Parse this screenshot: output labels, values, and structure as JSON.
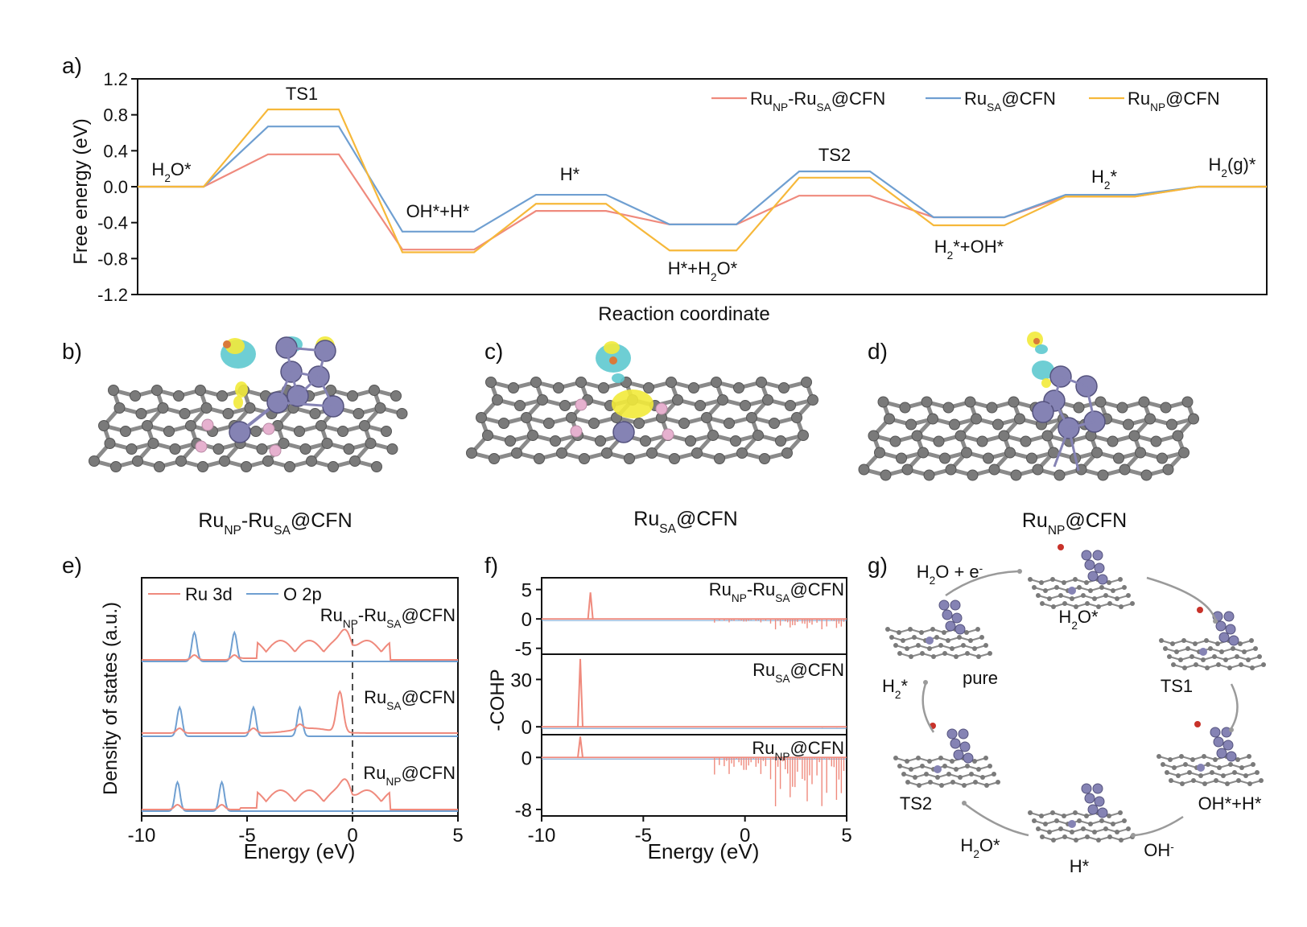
{
  "colors": {
    "ru_np_sa": "#ef8a7d",
    "ru_sa": "#6f9fd1",
    "ru_np": "#f6b83a",
    "carbon": "#8a8a8a",
    "ru_atom": "#8583b4",
    "n_atom": "#e6b1cf",
    "cdd_yellow": "#f2ea3a",
    "cdd_cyan": "#5ec9cf"
  },
  "panels": {
    "a": "a)",
    "b": "b)",
    "c": "c)",
    "d": "d)",
    "e": "e)",
    "f": "f)",
    "g": "g)"
  },
  "chart_data": [
    {
      "id": "a",
      "type": "line",
      "title": "",
      "xlabel": "Reaction coordinate",
      "ylabel": "Free energy (eV)",
      "ylim": [
        -1.2,
        1.2
      ],
      "yticks": [
        "1.2",
        "0.8",
        "0.4",
        "0.0",
        "-0.4",
        "-0.8",
        "-1.2"
      ],
      "states": [
        "H2O*",
        "TS1",
        "OH*+H*",
        "H*",
        "H*+H2O*",
        "TS2",
        "H2*+OH*",
        "H2*",
        "H2(g)*"
      ],
      "state_labels": [
        {
          "pre": "H",
          "sub": "2",
          "post": "O*"
        },
        {
          "pre": "TS1",
          "sub": "",
          "post": ""
        },
        {
          "pre": "OH*+H*",
          "sub": "",
          "post": ""
        },
        {
          "pre": "H*",
          "sub": "",
          "post": ""
        },
        {
          "pre": "H*+H",
          "sub": "2",
          "post": "O*"
        },
        {
          "pre": "TS2",
          "sub": "",
          "post": ""
        },
        {
          "pre": "H",
          "sub": "2",
          "post": "*+OH*"
        },
        {
          "pre": "H",
          "sub": "2",
          "post": "*"
        },
        {
          "pre": "H",
          "sub": "2",
          "post": "(g)*"
        }
      ],
      "series": [
        {
          "name": "RuNP-RuSA@CFN",
          "color": "#ef8a7d",
          "values": [
            0.0,
            0.36,
            -0.7,
            -0.27,
            -0.42,
            -0.1,
            -0.34,
            -0.11,
            0.0
          ]
        },
        {
          "name": "RuSA@CFN",
          "color": "#6f9fd1",
          "values": [
            0.0,
            0.67,
            -0.5,
            -0.09,
            -0.42,
            0.17,
            -0.34,
            -0.09,
            0.0
          ]
        },
        {
          "name": "RuNP@CFN",
          "color": "#f6b83a",
          "values": [
            0.0,
            0.86,
            -0.73,
            -0.19,
            -0.71,
            0.1,
            -0.43,
            -0.11,
            0.0
          ]
        }
      ],
      "legend": [
        {
          "pre": "Ru",
          "s1": "NP",
          "mid": "-Ru",
          "s2": "SA",
          "post": "@CFN",
          "color": "#ef8a7d"
        },
        {
          "pre": "Ru",
          "s1": "SA",
          "mid": "",
          "s2": "",
          "post": "@CFN",
          "color": "#6f9fd1"
        },
        {
          "pre": "Ru",
          "s1": "NP",
          "mid": "",
          "s2": "",
          "post": "@CFN",
          "color": "#f6b83a"
        }
      ],
      "legend_position": "top-right"
    },
    {
      "id": "e",
      "type": "line",
      "xlabel": "Energy (eV)",
      "ylabel": "Density of states (a.u.)",
      "xlim": [
        -10,
        5
      ],
      "xticks": [
        "-10",
        "-5",
        "0",
        "5"
      ],
      "legend": [
        {
          "name": "Ru 3d",
          "color": "#ef8a7d"
        },
        {
          "name": "O 2p",
          "color": "#6f9fd1"
        }
      ],
      "stacks": [
        {
          "label": {
            "pre": "Ru",
            "s1": "NP",
            "mid": "-Ru",
            "s2": "SA",
            "post": "@CFN"
          },
          "o2p_peaks": [
            -7.5,
            -5.6
          ],
          "ru3d_band": [
            -4.5,
            1.8
          ]
        },
        {
          "label": {
            "pre": "Ru",
            "s1": "SA",
            "mid": "",
            "s2": "",
            "post": "@CFN"
          },
          "o2p_peaks": [
            -8.2,
            -4.7,
            -2.5
          ],
          "ru3d_peak": -0.6
        },
        {
          "label": {
            "pre": "Ru",
            "s1": "NP",
            "mid": "",
            "s2": "",
            "post": "@CFN"
          },
          "o2p_peaks": [
            -8.3,
            -6.2
          ],
          "ru3d_band": [
            -4.5,
            1.8
          ]
        }
      ]
    },
    {
      "id": "f",
      "type": "line",
      "xlabel": "Energy (eV)",
      "ylabel": "-COHP",
      "xlim": [
        -10,
        5
      ],
      "xticks": [
        "-10",
        "-5",
        "0",
        "5"
      ],
      "subplots": [
        {
          "label": {
            "pre": "Ru",
            "s1": "NP",
            "mid": "-Ru",
            "s2": "SA",
            "post": "@CFN"
          },
          "yticks": [
            "5",
            "0",
            "-5"
          ],
          "ylim": [
            -6,
            7
          ],
          "spike": {
            "x": -7.6,
            "y": 4.5
          }
        },
        {
          "label": {
            "pre": "Ru",
            "s1": "SA",
            "mid": "",
            "s2": "",
            "post": "@CFN"
          },
          "yticks": [
            "30",
            "0"
          ],
          "ylim": [
            -5,
            46
          ],
          "spike": {
            "x": -8.1,
            "y": 43
          }
        },
        {
          "label": {
            "pre": "Ru",
            "s1": "NP",
            "mid": "",
            "s2": "",
            "post": "@CFN"
          },
          "yticks": [
            "0",
            "-8"
          ],
          "ylim": [
            -9,
            3.5
          ],
          "spike": {
            "x": -8.1,
            "y": 3.2
          }
        }
      ]
    }
  ],
  "structures": [
    {
      "pre": "Ru",
      "s1": "NP",
      "mid": "-Ru",
      "s2": "SA",
      "post": "@CFN"
    },
    {
      "pre": "Ru",
      "s1": "SA",
      "mid": "",
      "s2": "",
      "post": "@CFN"
    },
    {
      "pre": "Ru",
      "s1": "NP",
      "mid": "",
      "s2": "",
      "post": "@CFN"
    }
  ],
  "cycle": {
    "reagent_h2o": {
      "pre": "H",
      "sub": "2",
      "post": "O + e",
      "sup": "-"
    },
    "h2o_star": {
      "pre": "H",
      "sub": "2",
      "post": "O*"
    },
    "ts1": "TS1",
    "ohh": "OH*+H*",
    "oh_minus": {
      "pre": "OH",
      "sup": "-"
    },
    "h_star": "H*",
    "h2o_star2": {
      "pre": "H",
      "sub": "2",
      "post": "O*"
    },
    "ts2": "TS2",
    "h2_star": {
      "pre": "H",
      "sub": "2",
      "post": "*"
    },
    "pure": "pure"
  }
}
